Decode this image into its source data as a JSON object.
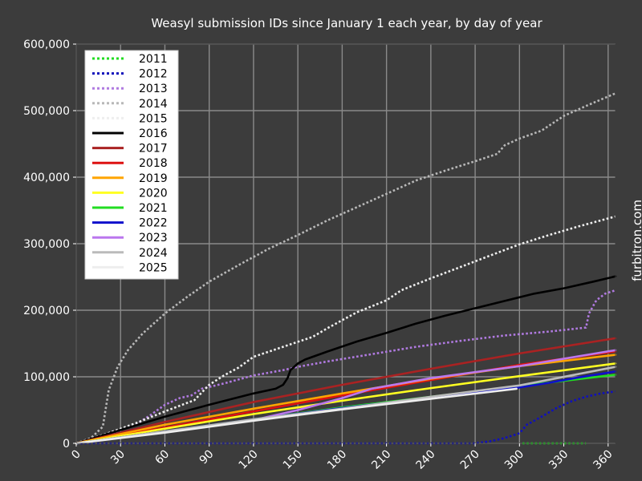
{
  "chart_data": {
    "type": "line",
    "title": "Weasyl submission IDs since January 1 each year, by day of year",
    "watermark": "furbitron.com",
    "xlabel": "",
    "ylabel": "",
    "xlim": [
      0,
      365
    ],
    "ylim": [
      0,
      600000
    ],
    "x_ticks": [
      0,
      30,
      60,
      90,
      120,
      150,
      180,
      210,
      240,
      270,
      300,
      330,
      360
    ],
    "y_ticks": [
      0,
      100000,
      200000,
      300000,
      400000,
      500000,
      600000
    ],
    "y_tick_labels": [
      "0",
      "100,000",
      "200,000",
      "300,000",
      "400,000",
      "500,000",
      "600,000"
    ],
    "grid": true,
    "legend_position": "top-left",
    "series": [
      {
        "name": "2011",
        "color": "#22dd22",
        "dashed": true,
        "points": [
          [
            302,
            0
          ],
          [
            310,
            0
          ],
          [
            320,
            0
          ],
          [
            330,
            0
          ],
          [
            340,
            0
          ],
          [
            345,
            0
          ]
        ]
      },
      {
        "name": "2012",
        "color": "#1010bb",
        "dashed": true,
        "points": [
          [
            0,
            0
          ],
          [
            60,
            0
          ],
          [
            120,
            0
          ],
          [
            180,
            0
          ],
          [
            240,
            0
          ],
          [
            270,
            0
          ],
          [
            280,
            3000
          ],
          [
            290,
            8000
          ],
          [
            300,
            15000
          ],
          [
            305,
            28000
          ],
          [
            315,
            40000
          ],
          [
            325,
            53000
          ],
          [
            335,
            63000
          ],
          [
            345,
            70000
          ],
          [
            355,
            75000
          ],
          [
            365,
            78000
          ]
        ]
      },
      {
        "name": "2013",
        "color": "#b07ae0",
        "dashed": true,
        "points": [
          [
            0,
            0
          ],
          [
            20,
            12000
          ],
          [
            40,
            28000
          ],
          [
            50,
            42000
          ],
          [
            60,
            58000
          ],
          [
            70,
            68000
          ],
          [
            78,
            72000
          ],
          [
            85,
            82000
          ],
          [
            100,
            90000
          ],
          [
            120,
            102000
          ],
          [
            140,
            110000
          ],
          [
            150,
            115000
          ],
          [
            170,
            123000
          ],
          [
            200,
            134000
          ],
          [
            230,
            145000
          ],
          [
            260,
            154000
          ],
          [
            290,
            162000
          ],
          [
            320,
            168000
          ],
          [
            345,
            174000
          ],
          [
            347,
            195000
          ],
          [
            352,
            215000
          ],
          [
            358,
            225000
          ],
          [
            365,
            230000
          ]
        ]
      },
      {
        "name": "2014",
        "color": "#b8b8b8",
        "dashed": true,
        "points": [
          [
            0,
            0
          ],
          [
            10,
            8000
          ],
          [
            18,
            25000
          ],
          [
            22,
            80000
          ],
          [
            28,
            115000
          ],
          [
            35,
            140000
          ],
          [
            45,
            165000
          ],
          [
            60,
            195000
          ],
          [
            75,
            220000
          ],
          [
            90,
            243000
          ],
          [
            110,
            268000
          ],
          [
            130,
            292000
          ],
          [
            150,
            313000
          ],
          [
            170,
            335000
          ],
          [
            190,
            355000
          ],
          [
            210,
            375000
          ],
          [
            230,
            395000
          ],
          [
            250,
            410000
          ],
          [
            270,
            424000
          ],
          [
            285,
            435000
          ],
          [
            290,
            448000
          ],
          [
            300,
            458000
          ],
          [
            315,
            470000
          ],
          [
            330,
            492000
          ],
          [
            345,
            507000
          ],
          [
            365,
            526000
          ]
        ]
      },
      {
        "name": "2015",
        "color": "#eeeeee",
        "dashed": true,
        "points": [
          [
            0,
            0
          ],
          [
            20,
            14000
          ],
          [
            40,
            30000
          ],
          [
            60,
            48000
          ],
          [
            80,
            65000
          ],
          [
            90,
            88000
          ],
          [
            100,
            102000
          ],
          [
            110,
            114000
          ],
          [
            120,
            130000
          ],
          [
            140,
            145000
          ],
          [
            160,
            160000
          ],
          [
            170,
            173000
          ],
          [
            180,
            185000
          ],
          [
            190,
            197000
          ],
          [
            210,
            215000
          ],
          [
            220,
            230000
          ],
          [
            240,
            248000
          ],
          [
            260,
            265000
          ],
          [
            280,
            282000
          ],
          [
            300,
            299000
          ],
          [
            320,
            313000
          ],
          [
            340,
            326000
          ],
          [
            365,
            341000
          ]
        ]
      },
      {
        "name": "2016",
        "color": "#000000",
        "dashed": false,
        "points": [
          [
            0,
            0
          ],
          [
            30,
            20000
          ],
          [
            60,
            40000
          ],
          [
            90,
            58000
          ],
          [
            120,
            75000
          ],
          [
            135,
            82000
          ],
          [
            140,
            88000
          ],
          [
            143,
            98000
          ],
          [
            145,
            110000
          ],
          [
            150,
            120000
          ],
          [
            155,
            126000
          ],
          [
            170,
            138000
          ],
          [
            190,
            153000
          ],
          [
            210,
            166000
          ],
          [
            230,
            180000
          ],
          [
            250,
            192000
          ],
          [
            270,
            203000
          ],
          [
            290,
            214000
          ],
          [
            310,
            225000
          ],
          [
            330,
            233000
          ],
          [
            350,
            243000
          ],
          [
            365,
            251000
          ]
        ]
      },
      {
        "name": "2017",
        "color": "#aa2222",
        "dashed": false,
        "points": [
          [
            0,
            0
          ],
          [
            60,
            32000
          ],
          [
            120,
            62000
          ],
          [
            180,
            88000
          ],
          [
            240,
            112000
          ],
          [
            300,
            135000
          ],
          [
            365,
            158000
          ]
        ]
      },
      {
        "name": "2018",
        "color": "#dd1111",
        "dashed": false,
        "points": [
          [
            0,
            0
          ],
          [
            60,
            24000
          ],
          [
            120,
            48000
          ],
          [
            180,
            72000
          ],
          [
            240,
            95000
          ],
          [
            300,
            118000
          ],
          [
            365,
            138000
          ]
        ]
      },
      {
        "name": "2019",
        "color": "#ffa500",
        "dashed": false,
        "points": [
          [
            0,
            0
          ],
          [
            60,
            28000
          ],
          [
            120,
            52000
          ],
          [
            180,
            75000
          ],
          [
            240,
            97000
          ],
          [
            300,
            116000
          ],
          [
            365,
            133000
          ]
        ]
      },
      {
        "name": "2020",
        "color": "#ffff22",
        "dashed": false,
        "points": [
          [
            0,
            0
          ],
          [
            60,
            22000
          ],
          [
            120,
            44000
          ],
          [
            180,
            64000
          ],
          [
            240,
            83000
          ],
          [
            300,
            101000
          ],
          [
            365,
            120000
          ]
        ]
      },
      {
        "name": "2021",
        "color": "#22dd22",
        "dashed": false,
        "points": [
          [
            0,
            0
          ],
          [
            60,
            18000
          ],
          [
            120,
            36000
          ],
          [
            180,
            54000
          ],
          [
            240,
            70000
          ],
          [
            300,
            86000
          ],
          [
            365,
            103000
          ]
        ]
      },
      {
        "name": "2022",
        "color": "#1010cc",
        "dashed": false,
        "points": [
          [
            0,
            0
          ],
          [
            60,
            18000
          ],
          [
            120,
            36000
          ],
          [
            180,
            53000
          ],
          [
            240,
            69000
          ],
          [
            300,
            84000
          ],
          [
            320,
            91000
          ],
          [
            340,
            99000
          ],
          [
            365,
            108000
          ]
        ]
      },
      {
        "name": "2023",
        "color": "#bb77ee",
        "dashed": false,
        "points": [
          [
            0,
            0
          ],
          [
            60,
            17000
          ],
          [
            120,
            35000
          ],
          [
            150,
            50000
          ],
          [
            180,
            68000
          ],
          [
            200,
            82000
          ],
          [
            240,
            98000
          ],
          [
            300,
            116000
          ],
          [
            365,
            140000
          ]
        ]
      },
      {
        "name": "2024",
        "color": "#bbbbbb",
        "dashed": false,
        "points": [
          [
            0,
            0
          ],
          [
            60,
            18000
          ],
          [
            120,
            36000
          ],
          [
            180,
            52000
          ],
          [
            240,
            70000
          ],
          [
            300,
            87000
          ],
          [
            365,
            115000
          ]
        ]
      },
      {
        "name": "2025",
        "color": "#eeeeee",
        "dashed": false,
        "points": [
          [
            0,
            0
          ],
          [
            60,
            16000
          ],
          [
            120,
            34000
          ],
          [
            180,
            51000
          ],
          [
            240,
            67000
          ],
          [
            298,
            82000
          ]
        ]
      }
    ]
  }
}
